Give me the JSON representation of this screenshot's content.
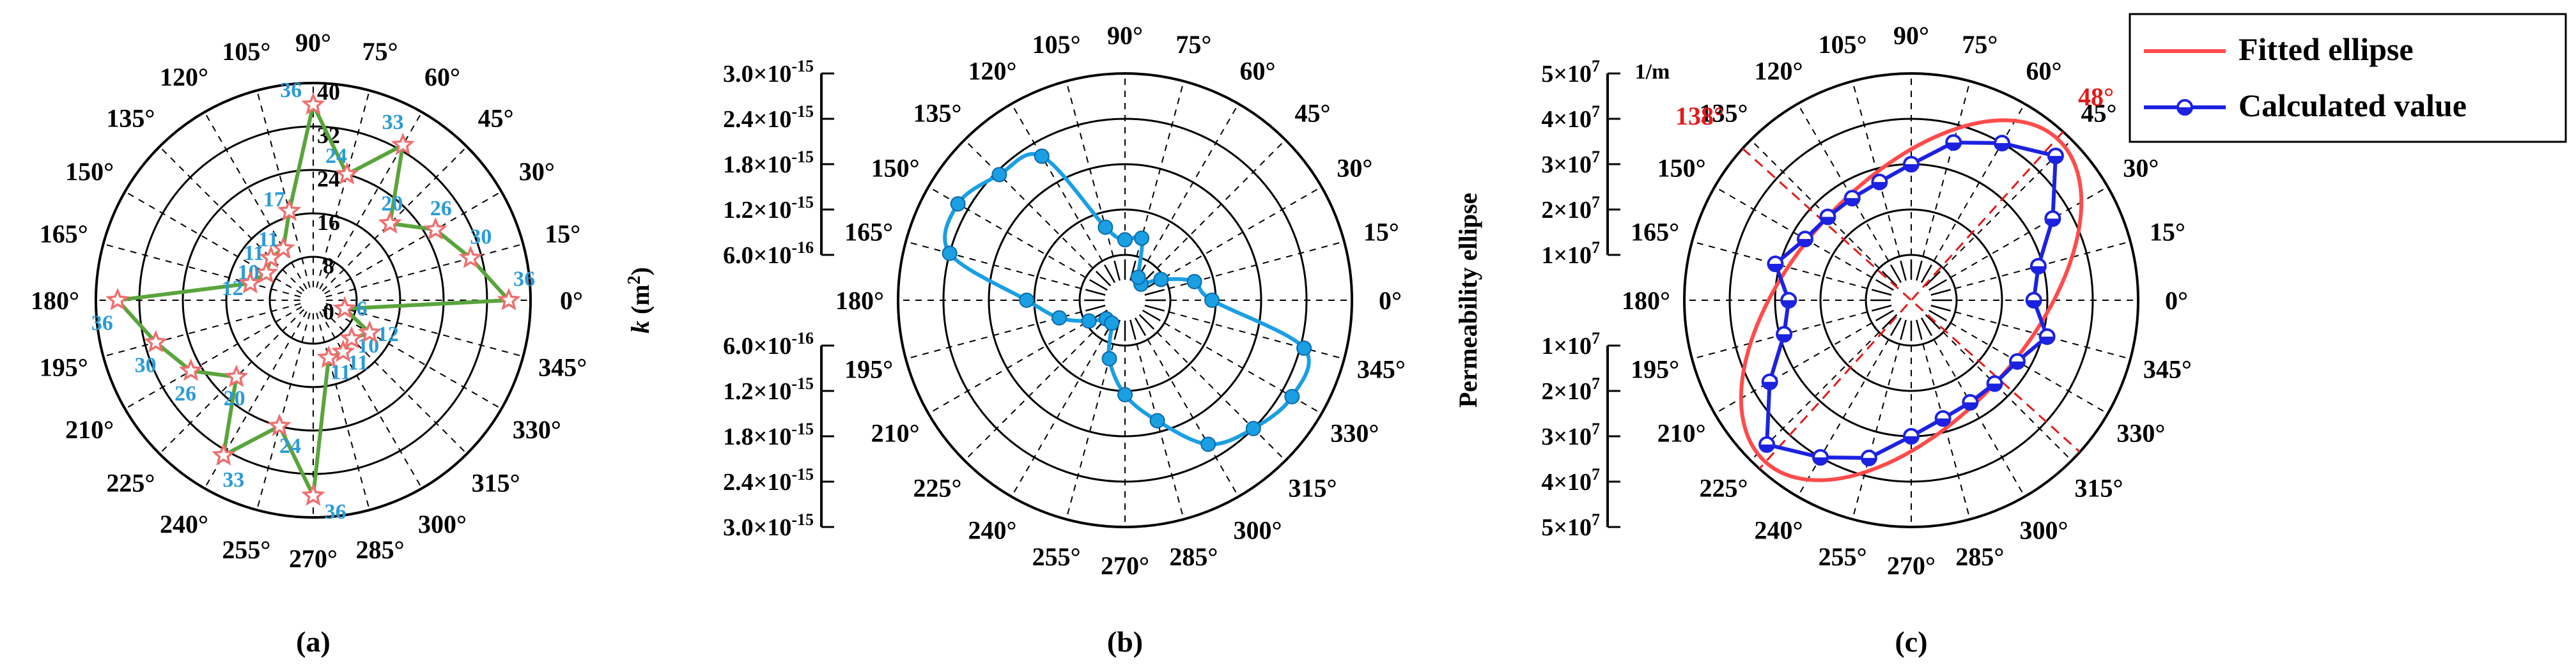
{
  "chart_data": [
    {
      "type": "radar",
      "panel_label": "(a)",
      "angle_labels": [
        "0°",
        "15°",
        "30°",
        "45°",
        "60°",
        "75°",
        "90°",
        "105°",
        "120°",
        "135°",
        "150°",
        "165°",
        "180°",
        "195°",
        "210°",
        "225°",
        "240°",
        "255°",
        "270°",
        "285°",
        "300°",
        "315°",
        "330°",
        "345°"
      ],
      "radial_tick_labels": [
        "0",
        "8",
        "16",
        "24",
        "32",
        "40"
      ],
      "r_range": [
        0,
        40
      ],
      "grid": true,
      "series": [
        {
          "color": "#5aa43c",
          "marker_color": "#ef6f6f",
          "label_color": "#2a9bd8",
          "points": [
            {
              "theta": 0,
              "r": 36
            },
            {
              "theta": 15,
              "r": 30
            },
            {
              "theta": 30,
              "r": 26
            },
            {
              "theta": 45,
              "r": 20
            },
            {
              "theta": 60,
              "r": 33
            },
            {
              "theta": 75,
              "r": 24
            },
            {
              "theta": 90,
              "r": 36
            },
            {
              "theta": 105,
              "r": 17
            },
            {
              "theta": 120,
              "r": 11
            },
            {
              "theta": 135,
              "r": 11
            },
            {
              "theta": 150,
              "r": 10
            },
            {
              "theta": 165,
              "r": 12
            },
            {
              "theta": 180,
              "r": 36
            },
            {
              "theta": 195,
              "r": 30
            },
            {
              "theta": 210,
              "r": 26
            },
            {
              "theta": 225,
              "r": 20
            },
            {
              "theta": 240,
              "r": 33
            },
            {
              "theta": 255,
              "r": 24
            },
            {
              "theta": 270,
              "r": 36
            },
            {
              "theta": 285,
              "r": 11
            },
            {
              "theta": 300,
              "r": 11
            },
            {
              "theta": 315,
              "r": 10
            },
            {
              "theta": 330,
              "r": 12
            },
            {
              "theta": 345,
              "r": 6
            }
          ]
        }
      ]
    },
    {
      "type": "polar",
      "panel_label": "(b)",
      "axis_label": "k (m²)",
      "axis_label_k": "k",
      "axis_label_unit": "(m",
      "axis_label_sup": "2",
      "axis_label_close": ")",
      "angle_labels": [
        "0°",
        "15°",
        "30°",
        "45°",
        "60°",
        "75°",
        "90°",
        "105°",
        "120°",
        "135°",
        "150°",
        "165°",
        "180°",
        "195°",
        "210°",
        "225°",
        "240°",
        "255°",
        "270°",
        "285°",
        "300°",
        "315°",
        "330°",
        "345°"
      ],
      "radial_ticks": [
        {
          "mantissa": "6.0×10",
          "exp": "-16"
        },
        {
          "mantissa": "1.2×10",
          "exp": "-15"
        },
        {
          "mantissa": "1.8×10",
          "exp": "-15"
        },
        {
          "mantissa": "2.4×10",
          "exp": "-15"
        },
        {
          "mantissa": "3.0×10",
          "exp": "-15"
        }
      ],
      "r_range": [
        0,
        3e-15
      ],
      "grid": true,
      "series": [
        {
          "color": "#1a9fe3",
          "points": [
            {
              "theta": 0,
              "r": 1.15e-15
            },
            {
              "theta": 15,
              "r": 9.5e-16
            },
            {
              "theta": 30,
              "r": 5.5e-16
            },
            {
              "theta": 45,
              "r": 3e-16
            },
            {
              "theta": 60,
              "r": 3.5e-16
            },
            {
              "theta": 75,
              "r": 8.5e-16
            },
            {
              "theta": 90,
              "r": 8e-16
            },
            {
              "theta": 105,
              "r": 1e-15
            },
            {
              "theta": 120,
              "r": 2.2e-15
            },
            {
              "theta": 135,
              "r": 2.35e-15
            },
            {
              "theta": 150,
              "r": 2.55e-15
            },
            {
              "theta": 165,
              "r": 2.4e-15
            },
            {
              "theta": 180,
              "r": 1.3e-15
            },
            {
              "theta": 195,
              "r": 9e-16
            },
            {
              "theta": 210,
              "r": 5.5e-16
            },
            {
              "theta": 225,
              "r": 3.5e-16
            },
            {
              "theta": 240,
              "r": 3.5e-16
            },
            {
              "theta": 255,
              "r": 8e-16
            },
            {
              "theta": 270,
              "r": 1.25e-15
            },
            {
              "theta": 285,
              "r": 1.65e-15
            },
            {
              "theta": 300,
              "r": 2.2e-15
            },
            {
              "theta": 315,
              "r": 2.4e-15
            },
            {
              "theta": 330,
              "r": 2.55e-15
            },
            {
              "theta": 345,
              "r": 2.45e-15
            }
          ]
        }
      ]
    },
    {
      "type": "polar",
      "panel_label": "(c)",
      "axis_label": "Permeability ellipse",
      "unit_label": "1/m",
      "angle_labels": [
        "0°",
        "15°",
        "30°",
        "45°",
        "60°",
        "75°",
        "90°",
        "105°",
        "120°",
        "135°",
        "150°",
        "165°",
        "180°",
        "195°",
        "210°",
        "225°",
        "240°",
        "255°",
        "270°",
        "285°",
        "300°",
        "315°",
        "330°",
        "345°"
      ],
      "radial_ticks": [
        {
          "mantissa": "1×10",
          "exp": "7"
        },
        {
          "mantissa": "2×10",
          "exp": "7"
        },
        {
          "mantissa": "3×10",
          "exp": "7"
        },
        {
          "mantissa": "4×10",
          "exp": "7"
        },
        {
          "mantissa": "5×10",
          "exp": "7"
        }
      ],
      "r_range": [
        0,
        50000000.0
      ],
      "grid": true,
      "annotations": [
        {
          "text": "48°",
          "theta": 48,
          "color": "#e31a1a"
        },
        {
          "text": "138°",
          "theta": 138,
          "color": "#e31a1a"
        }
      ],
      "principal_axes_deg": [
        48,
        138
      ],
      "legend_position": "top-right",
      "series": [
        {
          "name": "Fitted ellipse",
          "color": "#ff4b4b",
          "ellipse": {
            "major": 48000000.0,
            "minor": 26000000.0,
            "angle_deg": 48
          }
        },
        {
          "name": "Calculated value",
          "color": "#1c22e0",
          "points": [
            {
              "theta": 0,
              "r": 27000000.0
            },
            {
              "theta": 15,
              "r": 29000000.0
            },
            {
              "theta": 30,
              "r": 36000000.0
            },
            {
              "theta": 45,
              "r": 45000000.0
            },
            {
              "theta": 60,
              "r": 40000000.0
            },
            {
              "theta": 75,
              "r": 36000000.0
            },
            {
              "theta": 90,
              "r": 30000000.0
            },
            {
              "theta": 105,
              "r": 27000000.0
            },
            {
              "theta": 120,
              "r": 26000000.0
            },
            {
              "theta": 135,
              "r": 26000000.0
            },
            {
              "theta": 150,
              "r": 27000000.0
            },
            {
              "theta": 165,
              "r": 31000000.0
            },
            {
              "theta": 180,
              "r": 27000000.0
            },
            {
              "theta": 195,
              "r": 29000000.0
            },
            {
              "theta": 210,
              "r": 36000000.0
            },
            {
              "theta": 225,
              "r": 45000000.0
            },
            {
              "theta": 240,
              "r": 40000000.0
            },
            {
              "theta": 255,
              "r": 36000000.0
            },
            {
              "theta": 270,
              "r": 30000000.0
            },
            {
              "theta": 285,
              "r": 27000000.0
            },
            {
              "theta": 300,
              "r": 26000000.0
            },
            {
              "theta": 315,
              "r": 26000000.0
            },
            {
              "theta": 330,
              "r": 27000000.0
            },
            {
              "theta": 345,
              "r": 31000000.0
            }
          ]
        }
      ]
    }
  ]
}
